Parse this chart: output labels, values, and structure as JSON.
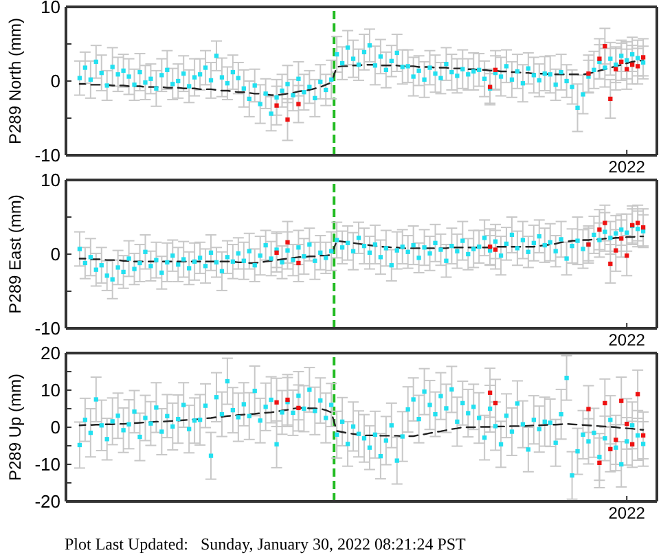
{
  "chart_data": [
    {
      "type": "scatter",
      "ylabel": "P289 North (mm)",
      "categories": [
        null,
        null,
        null,
        null,
        null,
        null,
        null,
        null,
        null,
        null,
        null,
        null,
        null,
        null,
        null,
        null,
        null,
        null,
        null,
        null,
        null,
        null,
        null,
        null,
        null,
        null,
        null,
        null,
        null,
        null,
        null,
        null,
        null,
        null,
        null,
        null,
        null,
        null,
        null,
        null,
        null,
        null,
        null,
        null,
        null,
        null,
        null,
        null,
        null,
        null,
        null,
        null,
        null,
        null,
        null,
        null,
        null,
        null,
        null,
        null,
        null,
        null,
        null,
        null,
        null,
        null,
        null,
        null,
        null,
        null,
        null,
        null,
        null,
        null,
        null,
        null,
        null,
        null,
        null,
        null,
        null,
        null,
        null,
        null,
        null,
        null,
        null,
        null,
        null,
        null,
        null,
        null,
        null,
        null,
        null,
        null,
        null,
        null,
        null,
        null,
        null,
        null,
        "2022",
        null,
        null,
        null,
        null,
        null
      ],
      "ylim": [
        -10,
        10
      ],
      "yticks": [
        -10,
        {
          "value": -5,
          "label": null
        },
        0,
        {
          "value": 5,
          "label": null
        },
        10
      ],
      "marker": "square",
      "series": [
        {
          "color": "#22e0f0",
          "values": [
            null,
            null,
            0.4,
            1.8,
            0.2,
            2.6,
            1.1,
            -0.6,
            1.9,
            0.9,
            1.4,
            0.6,
            -0.5,
            1.2,
            -0.2,
            0.3,
            -1.0,
            0.8,
            1.5,
            -0.4,
            0.0,
            1.0,
            -0.7,
            0.5,
            0.9,
            1.8,
            0.1,
            3.4,
            0.5,
            -0.3,
            1.2,
            0.4,
            -1.0,
            -2.4,
            -0.6,
            -3.1,
            -1.7,
            -4.4,
            -2.2,
            -1.3,
            -0.4,
            -1.9,
            0.3,
            -1.5,
            -0.8,
            -2.3,
            -0.1,
            -1.2,
            0.2,
            3.6,
            2.4,
            4.5,
            3.0,
            2.2,
            3.9,
            4.8,
            2.1,
            3.3,
            1.5,
            2.7,
            3.8,
            1.9,
            2.0,
            0.6,
            1.4,
            0.2,
            1.8,
            1.0,
            0.4,
            2.3,
            1.2,
            0.7,
            1.6,
            0.9,
            1.3,
            1.5,
            0.3,
            -1.0,
            1.1,
            0.6,
            2.0,
            0.2,
            1.3,
            -0.3,
            1.7,
            0.8,
            0.1,
            1.0,
            0.9,
            -0.5,
            1.2,
            0.0,
            -0.8,
            -3.6,
            -1.8,
            0.6,
            1.5,
            2.6,
            1.8,
            3.0,
            2.2,
            3.4,
            2.8,
            3.6,
            3.1,
            2.5,
            null,
            null
          ],
          "errors": [
            null,
            null,
            2.3,
            2.1,
            2.5,
            2.2,
            2.4,
            2.0,
            2.6,
            2.3,
            2.2,
            2.4,
            2.1,
            2.5,
            2.3,
            2.0,
            2.4,
            2.2,
            2.6,
            2.1,
            2.3,
            2.4,
            2.2,
            2.5,
            2.1,
            2.3,
            2.4,
            2.0,
            2.6,
            2.2,
            2.3,
            2.1,
            2.5,
            2.4,
            2.2,
            2.6,
            2.0,
            2.3,
            2.4,
            2.2,
            2.5,
            2.1,
            2.3,
            2.4,
            2.2,
            2.5,
            2.3,
            2.1,
            2.6,
            2.4,
            2.2,
            2.3,
            2.5,
            2.1,
            2.4,
            2.2,
            2.6,
            2.3,
            2.4,
            2.1,
            2.5,
            2.3,
            2.2,
            2.6,
            2.0,
            2.4,
            2.3,
            2.5,
            2.1,
            2.2,
            2.4,
            2.3,
            2.6,
            2.1,
            2.5,
            2.2,
            2.4,
            2.0,
            2.3,
            2.6,
            2.2,
            2.4,
            2.3,
            2.5,
            2.1,
            2.4,
            2.2,
            2.3,
            2.5,
            2.1,
            2.4,
            2.2,
            2.3,
            3.2,
            2.6,
            2.2,
            2.5,
            2.3,
            2.6,
            2.2,
            2.4,
            2.1,
            2.5,
            2.3,
            2.4,
            2.2,
            null,
            null
          ]
        },
        {
          "color": "#ee1111",
          "values": [
            null,
            null,
            null,
            null,
            null,
            null,
            null,
            null,
            null,
            null,
            null,
            null,
            null,
            null,
            null,
            null,
            null,
            null,
            null,
            null,
            null,
            null,
            null,
            null,
            null,
            null,
            null,
            null,
            null,
            null,
            null,
            null,
            null,
            null,
            null,
            null,
            null,
            null,
            -3.3,
            null,
            -5.2,
            null,
            -3.1,
            null,
            null,
            null,
            null,
            null,
            null,
            null,
            null,
            null,
            null,
            null,
            null,
            null,
            null,
            null,
            null,
            null,
            null,
            null,
            null,
            null,
            null,
            null,
            null,
            null,
            null,
            null,
            null,
            null,
            null,
            null,
            null,
            null,
            null,
            -0.8,
            1.5,
            null,
            null,
            null,
            null,
            null,
            null,
            null,
            null,
            null,
            null,
            null,
            null,
            null,
            null,
            null,
            null,
            1.0,
            null,
            3.0,
            4.7,
            -2.4,
            1.6,
            2.6,
            1.6,
            2.2,
            2.0,
            3.2,
            null,
            null
          ],
          "errors": [
            null,
            null,
            null,
            null,
            null,
            null,
            null,
            null,
            null,
            null,
            null,
            null,
            null,
            null,
            null,
            null,
            null,
            null,
            null,
            null,
            null,
            null,
            null,
            null,
            null,
            null,
            null,
            null,
            null,
            null,
            null,
            null,
            null,
            null,
            null,
            null,
            null,
            null,
            2.6,
            null,
            2.8,
            null,
            2.5,
            null,
            null,
            null,
            null,
            null,
            null,
            null,
            null,
            null,
            null,
            null,
            null,
            null,
            null,
            null,
            null,
            null,
            null,
            null,
            null,
            null,
            null,
            null,
            null,
            null,
            null,
            null,
            null,
            null,
            null,
            null,
            null,
            null,
            null,
            2.4,
            2.6,
            null,
            null,
            null,
            null,
            null,
            null,
            null,
            null,
            null,
            null,
            null,
            null,
            null,
            null,
            null,
            null,
            2.5,
            null,
            2.7,
            2.4,
            2.6,
            2.8,
            2.5,
            2.7,
            2.6,
            2.4,
            2.5,
            null,
            null
          ]
        },
        {
          "type": "line",
          "color": "#222222",
          "line_style": "dashed",
          "marker": "none",
          "values": [
            null,
            null,
            -0.4,
            -0.4,
            -0.5,
            -0.5,
            -0.5,
            -0.5,
            -0.6,
            -0.6,
            -0.6,
            -0.7,
            -0.7,
            -0.7,
            -0.8,
            -0.8,
            -0.8,
            -0.8,
            -0.9,
            -0.9,
            -0.9,
            -1.0,
            -1.0,
            -1.0,
            -1.1,
            -1.1,
            -1.1,
            -1.2,
            -1.3,
            -1.3,
            -1.4,
            -1.5,
            -1.5,
            -1.6,
            -1.7,
            -1.7,
            -1.8,
            -1.9,
            -1.9,
            -1.8,
            -1.7,
            -1.6,
            -1.4,
            -1.3,
            -1.2,
            -1.0,
            -0.8,
            -0.5,
            -0.2,
            1.9,
            2.0,
            2.0,
            2.1,
            2.1,
            2.2,
            2.2,
            2.2,
            2.1,
            2.1,
            2.1,
            2.1,
            2.0,
            2.0,
            2.0,
            1.9,
            1.9,
            1.9,
            1.8,
            1.8,
            1.8,
            1.7,
            1.7,
            1.7,
            1.6,
            1.6,
            1.5,
            1.5,
            1.4,
            1.4,
            1.3,
            1.3,
            1.2,
            1.2,
            1.1,
            1.1,
            1.0,
            1.0,
            1.0,
            0.9,
            0.9,
            0.9,
            0.9,
            0.9,
            0.9,
            0.9,
            1.0,
            1.2,
            1.4,
            1.6,
            1.8,
            2.0,
            2.2,
            2.4,
            2.6,
            2.7,
            2.8,
            null,
            null
          ]
        }
      ]
    },
    {
      "type": "scatter",
      "ylabel": "P289 East (mm)",
      "categories": [
        null,
        null,
        null,
        null,
        null,
        null,
        null,
        null,
        null,
        null,
        null,
        null,
        null,
        null,
        null,
        null,
        null,
        null,
        null,
        null,
        null,
        null,
        null,
        null,
        null,
        null,
        null,
        null,
        null,
        null,
        null,
        null,
        null,
        null,
        null,
        null,
        null,
        null,
        null,
        null,
        null,
        null,
        null,
        null,
        null,
        null,
        null,
        null,
        null,
        null,
        null,
        null,
        null,
        null,
        null,
        null,
        null,
        null,
        null,
        null,
        null,
        null,
        null,
        null,
        null,
        null,
        null,
        null,
        null,
        null,
        null,
        null,
        null,
        null,
        null,
        null,
        null,
        null,
        null,
        null,
        null,
        null,
        null,
        null,
        null,
        null,
        null,
        null,
        null,
        null,
        null,
        null,
        null,
        null,
        null,
        null,
        null,
        null,
        null,
        null,
        null,
        null,
        "2022",
        null,
        null,
        null,
        null,
        null
      ],
      "ylim": [
        -10,
        10
      ],
      "yticks": [
        -10,
        {
          "value": -5,
          "label": null
        },
        0,
        {
          "value": 5,
          "label": null
        },
        10
      ],
      "marker": "square",
      "series": [
        {
          "color": "#22e0f0",
          "values": [
            null,
            null,
            0.7,
            -1.2,
            -0.4,
            -2.1,
            -1.5,
            -2.9,
            -3.4,
            -1.8,
            -2.4,
            -0.6,
            -2.0,
            -1.2,
            0.3,
            -1.6,
            -0.8,
            -2.5,
            -1.1,
            -0.2,
            -1.4,
            -0.7,
            -1.9,
            -1.0,
            -0.5,
            -1.6,
            0.2,
            -1.1,
            -2.3,
            -0.4,
            -1.0,
            0.1,
            -0.9,
            0.4,
            -1.5,
            -0.2,
            1.2,
            -0.6,
            0.6,
            -1.1,
            0.5,
            -0.8,
            0.9,
            -0.3,
            1.3,
            -0.9,
            0.2,
            -0.5,
            0.4,
            1.9,
            0.9,
            1.5,
            0.4,
            2.2,
            1.1,
            0.2,
            1.3,
            -0.4,
            0.8,
            -1.5,
            0.5,
            1.0,
            0.3,
            1.2,
            -0.5,
            0.9,
            0.1,
            1.5,
            0.6,
            -0.9,
            1.1,
            0.4,
            1.8,
            0.0,
            0.7,
            1.0,
            2.2,
            0.5,
            1.7,
            -0.2,
            1.4,
            2.6,
            0.8,
            1.9,
            0.3,
            1.5,
            2.4,
            1.2,
            1.6,
            0.4,
            2.0,
            -0.6,
            1.1,
            1.8,
            0.7,
            1.3,
            2.6,
            1.9,
            3.0,
            2.2,
            2.8,
            3.3,
            2.9,
            3.8,
            3.4,
            3.1,
            null,
            null
          ],
          "errors": [
            null,
            null,
            2.3,
            2.1,
            2.5,
            2.2,
            2.4,
            2.0,
            2.6,
            2.3,
            2.2,
            2.4,
            2.1,
            2.5,
            2.3,
            2.0,
            2.4,
            2.2,
            2.6,
            2.1,
            2.3,
            2.4,
            2.2,
            2.5,
            2.1,
            2.3,
            2.4,
            2.0,
            2.6,
            2.2,
            2.3,
            2.1,
            2.5,
            2.4,
            2.2,
            2.6,
            2.0,
            2.3,
            2.4,
            2.2,
            2.5,
            2.1,
            2.3,
            2.4,
            2.2,
            2.5,
            2.3,
            2.1,
            2.6,
            2.4,
            2.2,
            2.3,
            2.5,
            2.1,
            2.4,
            2.2,
            2.6,
            2.3,
            2.4,
            2.1,
            2.5,
            2.3,
            2.2,
            2.6,
            2.0,
            2.4,
            2.3,
            2.5,
            2.1,
            2.2,
            2.4,
            2.3,
            2.6,
            2.1,
            2.5,
            2.2,
            2.4,
            2.0,
            2.3,
            2.6,
            2.2,
            2.4,
            2.3,
            2.5,
            2.1,
            2.4,
            2.2,
            2.3,
            2.5,
            2.1,
            2.4,
            2.2,
            2.3,
            3.2,
            2.6,
            2.2,
            2.5,
            2.3,
            2.6,
            2.2,
            2.4,
            2.1,
            2.5,
            2.3,
            2.4,
            2.2,
            null,
            null
          ]
        },
        {
          "color": "#ee1111",
          "values": [
            null,
            null,
            null,
            null,
            null,
            null,
            null,
            null,
            null,
            null,
            null,
            null,
            null,
            null,
            null,
            null,
            null,
            null,
            null,
            null,
            null,
            null,
            null,
            null,
            null,
            null,
            null,
            null,
            null,
            null,
            null,
            null,
            null,
            null,
            null,
            null,
            null,
            null,
            0.2,
            null,
            1.6,
            null,
            -1.2,
            null,
            null,
            null,
            null,
            null,
            null,
            null,
            null,
            null,
            null,
            null,
            null,
            null,
            null,
            null,
            null,
            null,
            null,
            null,
            null,
            null,
            null,
            null,
            null,
            null,
            null,
            null,
            null,
            null,
            null,
            null,
            null,
            null,
            null,
            1.0,
            0.6,
            null,
            null,
            null,
            null,
            null,
            null,
            null,
            null,
            null,
            null,
            null,
            null,
            null,
            null,
            null,
            null,
            1.3,
            null,
            3.3,
            4.2,
            -1.3,
            0.5,
            2.1,
            -0.2,
            3.9,
            4.2,
            3.6,
            null,
            null
          ],
          "errors": [
            null,
            null,
            null,
            null,
            null,
            null,
            null,
            null,
            null,
            null,
            null,
            null,
            null,
            null,
            null,
            null,
            null,
            null,
            null,
            null,
            null,
            null,
            null,
            null,
            null,
            null,
            null,
            null,
            null,
            null,
            null,
            null,
            null,
            null,
            null,
            null,
            null,
            null,
            2.6,
            null,
            2.8,
            null,
            2.5,
            null,
            null,
            null,
            null,
            null,
            null,
            null,
            null,
            null,
            null,
            null,
            null,
            null,
            null,
            null,
            null,
            null,
            null,
            null,
            null,
            null,
            null,
            null,
            null,
            null,
            null,
            null,
            null,
            null,
            null,
            null,
            null,
            null,
            null,
            2.4,
            2.6,
            null,
            null,
            null,
            null,
            null,
            null,
            null,
            null,
            null,
            null,
            null,
            null,
            null,
            null,
            null,
            null,
            2.5,
            null,
            2.7,
            2.4,
            2.6,
            2.8,
            2.5,
            2.7,
            2.6,
            2.4,
            2.5,
            null,
            null
          ]
        },
        {
          "type": "line",
          "color": "#222222",
          "line_style": "dashed",
          "marker": "none",
          "values": [
            null,
            null,
            -0.6,
            -0.6,
            -0.7,
            -0.7,
            -0.7,
            -0.8,
            -0.8,
            -0.8,
            -0.9,
            -0.9,
            -1.0,
            -1.0,
            -1.0,
            -1.0,
            -1.0,
            -1.0,
            -1.0,
            -1.0,
            -1.0,
            -1.0,
            -1.0,
            -1.0,
            -1.0,
            -1.0,
            -1.0,
            -1.0,
            -1.0,
            -1.0,
            -1.0,
            -1.1,
            -1.1,
            -1.2,
            -1.2,
            -1.1,
            -1.0,
            -0.9,
            -0.8,
            -0.7,
            -0.6,
            -0.5,
            -0.4,
            -0.4,
            -0.3,
            -0.3,
            -0.2,
            -0.2,
            -0.1,
            1.8,
            1.7,
            1.6,
            1.5,
            1.4,
            1.3,
            1.2,
            1.1,
            1.0,
            1.0,
            0.9,
            0.9,
            0.8,
            0.8,
            0.8,
            0.8,
            0.8,
            0.8,
            0.8,
            0.8,
            0.8,
            0.9,
            0.9,
            0.9,
            0.9,
            0.9,
            0.9,
            0.9,
            0.9,
            1.0,
            1.0,
            1.0,
            1.0,
            1.0,
            1.0,
            1.0,
            1.0,
            1.1,
            1.2,
            1.3,
            1.4,
            1.6,
            1.7,
            1.8,
            1.8,
            1.9,
            1.9,
            2.0,
            2.0,
            2.1,
            2.1,
            2.2,
            2.2,
            2.3,
            2.3,
            2.4,
            2.4,
            null,
            null
          ]
        }
      ]
    },
    {
      "type": "scatter",
      "ylabel": "P289 Up (mm)",
      "categories": [
        null,
        null,
        null,
        null,
        null,
        null,
        null,
        null,
        null,
        null,
        null,
        null,
        null,
        null,
        null,
        null,
        null,
        null,
        null,
        null,
        null,
        null,
        null,
        null,
        null,
        null,
        null,
        null,
        null,
        null,
        null,
        null,
        null,
        null,
        null,
        null,
        null,
        null,
        null,
        null,
        null,
        null,
        null,
        null,
        null,
        null,
        null,
        null,
        null,
        null,
        null,
        null,
        null,
        null,
        null,
        null,
        null,
        null,
        null,
        null,
        null,
        null,
        null,
        null,
        null,
        null,
        null,
        null,
        null,
        null,
        null,
        null,
        null,
        null,
        null,
        null,
        null,
        null,
        null,
        null,
        null,
        null,
        null,
        null,
        null,
        null,
        null,
        null,
        null,
        null,
        null,
        null,
        null,
        null,
        null,
        null,
        null,
        null,
        null,
        null,
        null,
        null,
        "2022",
        null,
        null,
        null,
        null,
        null
      ],
      "ylim": [
        -20,
        20
      ],
      "yticks": [
        -20,
        {
          "value": -15,
          "label": null
        },
        -10,
        {
          "value": -5,
          "label": null
        },
        0,
        {
          "value": 5,
          "label": null
        },
        10,
        {
          "value": 15,
          "label": null
        },
        20
      ],
      "marker": "square",
      "annotations": [
        "Plot Last Updated:   Sunday, January 30, 2022 08:21:24 PST"
      ],
      "series": [
        {
          "color": "#22e0f0",
          "values": [
            null,
            null,
            -4.8,
            2.0,
            -1.5,
            7.5,
            0.5,
            -3.2,
            1.6,
            3.1,
            -0.8,
            0.8,
            4.2,
            -2.6,
            2.5,
            1.0,
            5.3,
            -1.2,
            3.0,
            0.2,
            2.2,
            6.0,
            -0.5,
            1.8,
            2.0,
            5.8,
            -7.7,
            8.1,
            3.5,
            12.4,
            4.6,
            2.7,
            6.2,
            3.0,
            9.8,
            1.8,
            5.5,
            7.4,
            -4.6,
            4.0,
            6.8,
            3.9,
            8.5,
            5.0,
            10.1,
            4.4,
            7.2,
            2.5,
            6.0,
            -2.0,
            1.5,
            -4.5,
            0.2,
            -1.8,
            -3.0,
            -5.5,
            -2.0,
            -7.8,
            -3.6,
            0.5,
            -9.0,
            -2.5,
            4.8,
            7.5,
            2.2,
            9.6,
            6.0,
            3.5,
            8.4,
            5.1,
            10.2,
            1.5,
            6.5,
            3.8,
            5.5,
            2.5,
            -2.8,
            5.0,
            0.3,
            -4.6,
            3.1,
            -1.2,
            6.4,
            0.8,
            -6.0,
            2.0,
            -0.5,
            1.5,
            1.2,
            -4.2,
            3.5,
            13.3,
            -13.0,
            -6.5,
            -2.0,
            -3.8,
            -1.5,
            -8.0,
            -3.0,
            2.0,
            -5.5,
            -10.0,
            -3.8,
            0.5,
            -2.2,
            -4.5,
            null,
            null
          ],
          "errors": [
            null,
            null,
            6.2,
            5.8,
            6.5,
            6.0,
            6.8,
            5.6,
            6.3,
            6.1,
            6.0,
            6.6,
            5.7,
            6.4,
            6.1,
            5.9,
            6.7,
            6.2,
            5.8,
            6.3,
            6.5,
            6.0,
            6.4,
            6.1,
            6.8,
            5.9,
            6.3,
            6.6,
            6.0,
            6.2,
            6.1,
            6.5,
            5.8,
            6.3,
            6.7,
            6.0,
            6.4,
            6.2,
            6.3,
            5.9,
            6.6,
            6.1,
            6.5,
            6.2,
            6.0,
            6.4,
            6.1,
            6.7,
            5.8,
            6.3,
            6.5,
            6.0,
            6.6,
            6.2,
            6.4,
            5.9,
            6.3,
            6.1,
            6.5,
            6.0,
            6.3,
            6.7,
            6.1,
            5.8,
            6.4,
            6.2,
            6.6,
            6.0,
            6.3,
            6.5,
            6.2,
            6.6,
            5.9,
            6.4,
            6.1,
            6.8,
            6.0,
            6.3,
            6.5,
            6.2,
            5.9,
            6.4,
            6.1,
            6.3,
            6.0,
            6.5,
            6.2,
            6.6,
            6.4,
            6.3,
            6.7,
            6.0,
            6.4,
            6.2,
            6.5,
            6.1,
            6.6,
            6.3,
            6.0,
            6.5,
            6.2,
            6.1,
            6.4,
            6.3,
            6.7,
            6.0,
            null,
            null
          ]
        },
        {
          "color": "#ee1111",
          "values": [
            null,
            null,
            null,
            null,
            null,
            null,
            null,
            null,
            null,
            null,
            null,
            null,
            null,
            null,
            null,
            null,
            null,
            null,
            null,
            null,
            null,
            null,
            null,
            null,
            null,
            null,
            null,
            null,
            null,
            null,
            null,
            null,
            null,
            null,
            null,
            null,
            null,
            null,
            6.7,
            null,
            7.4,
            null,
            5.2,
            null,
            null,
            null,
            null,
            null,
            null,
            null,
            null,
            null,
            null,
            null,
            null,
            null,
            null,
            null,
            null,
            null,
            null,
            null,
            null,
            null,
            null,
            null,
            null,
            null,
            null,
            null,
            null,
            null,
            null,
            null,
            null,
            null,
            null,
            9.3,
            6.5,
            null,
            null,
            null,
            null,
            null,
            null,
            null,
            null,
            null,
            null,
            null,
            null,
            null,
            null,
            null,
            null,
            4.9,
            null,
            -9.6,
            6.5,
            -5.9,
            -3.4,
            7.1,
            0.9,
            -4.6,
            8.9,
            -2.2,
            null,
            null
          ],
          "errors": [
            null,
            null,
            null,
            null,
            null,
            null,
            null,
            null,
            null,
            null,
            null,
            null,
            null,
            null,
            null,
            null,
            null,
            null,
            null,
            null,
            null,
            null,
            null,
            null,
            null,
            null,
            null,
            null,
            null,
            null,
            null,
            null,
            null,
            null,
            null,
            null,
            null,
            null,
            6.5,
            null,
            6.8,
            null,
            6.2,
            null,
            null,
            null,
            null,
            null,
            null,
            null,
            null,
            null,
            null,
            null,
            null,
            null,
            null,
            null,
            null,
            null,
            null,
            null,
            null,
            null,
            null,
            null,
            null,
            null,
            null,
            null,
            null,
            null,
            null,
            null,
            null,
            null,
            null,
            6.6,
            6.4,
            null,
            null,
            null,
            null,
            null,
            null,
            null,
            null,
            null,
            null,
            null,
            null,
            null,
            null,
            null,
            null,
            6.3,
            null,
            6.7,
            6.5,
            6.1,
            6.6,
            6.4,
            6.8,
            6.2,
            6.5,
            6.3,
            null,
            null
          ]
        },
        {
          "type": "line",
          "color": "#222222",
          "line_style": "dashed",
          "marker": "none",
          "values": [
            null,
            null,
            0.5,
            0.6,
            0.6,
            0.7,
            0.7,
            0.8,
            0.8,
            0.9,
            0.9,
            1.0,
            1.1,
            1.2,
            1.3,
            1.4,
            1.5,
            1.5,
            1.6,
            1.7,
            1.8,
            1.9,
            2.0,
            2.1,
            2.2,
            2.4,
            2.5,
            2.7,
            2.8,
            3.0,
            3.1,
            3.3,
            3.4,
            3.5,
            3.6,
            3.8,
            3.9,
            4.0,
            4.2,
            4.5,
            4.7,
            5.0,
            5.2,
            5.2,
            5.1,
            5.1,
            5.0,
            4.6,
            4.0,
            -1.0,
            -1.3,
            -1.6,
            -1.8,
            -2.0,
            -2.2,
            -2.2,
            -2.2,
            -2.3,
            -2.3,
            -2.3,
            -2.3,
            -2.4,
            -2.4,
            -2.4,
            -2.1,
            -1.9,
            -1.6,
            -1.3,
            -1.1,
            -0.8,
            -0.5,
            -0.3,
            0.0,
            0.0,
            0.0,
            0.1,
            0.1,
            0.1,
            0.2,
            0.2,
            0.2,
            0.3,
            0.3,
            0.3,
            0.4,
            0.5,
            0.5,
            0.6,
            0.7,
            0.7,
            0.8,
            0.9,
            0.8,
            0.7,
            0.6,
            0.5,
            0.4,
            0.3,
            0.2,
            0.1,
            0.0,
            -0.2,
            -0.3,
            -0.4,
            -0.6,
            -0.7,
            null,
            null
          ]
        }
      ]
    }
  ]
}
